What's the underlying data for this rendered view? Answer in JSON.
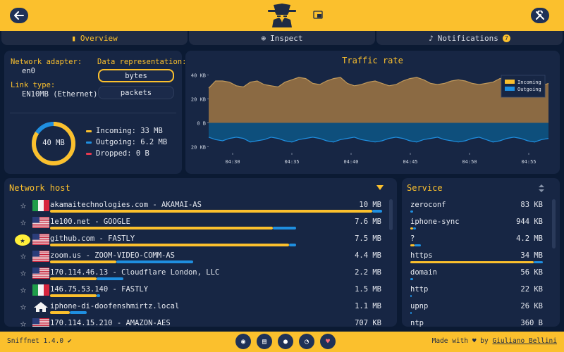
{
  "tabs": [
    {
      "label": "Overview",
      "icon": "chart-icon",
      "active": true
    },
    {
      "label": "Inspect",
      "icon": "magnifier-icon",
      "active": false
    },
    {
      "label": "Notifications",
      "icon": "bell-icon",
      "active": false,
      "badge": "7"
    }
  ],
  "adapter": {
    "network_adapter_label": "Network adapter:",
    "network_adapter_value": "en0",
    "link_type_label": "Link type:",
    "link_type_value": "EN10MB (Ethernet)",
    "data_rep_label": "Data representation:",
    "bytes_label": "bytes",
    "packets_label": "packets",
    "selected": "bytes",
    "total": "40 MB",
    "incoming": "Incoming: 33 MB",
    "outgoing": "Outgoing: 6.2 MB",
    "dropped": "Dropped: 0 B",
    "incoming_share": 0.84
  },
  "colors": {
    "accent": "#fbc02d",
    "incoming": "#fbc02d",
    "outgoing": "#1f8fe0",
    "dropped": "#e53950",
    "header": "#fbc02d"
  },
  "chart_data": {
    "type": "area",
    "title": "Traffic rate",
    "y_ticks": [
      "40 KB",
      "20 KB",
      "0 B",
      "20 KB"
    ],
    "y_tick_values": [
      40,
      20,
      0,
      -20
    ],
    "x_ticks": [
      "04:30",
      "04:35",
      "04:40",
      "04:45",
      "04:50",
      "04:55"
    ],
    "ylim": [
      -25,
      45
    ],
    "legend_position": "top-right",
    "series": [
      {
        "name": "Incoming",
        "values": [
          29,
          35,
          35,
          34,
          31,
          30,
          34,
          35,
          32,
          31,
          30,
          34,
          36,
          38,
          37,
          33,
          32,
          35,
          37,
          38,
          33,
          31,
          32,
          34,
          35,
          33,
          31,
          32,
          35,
          37,
          38,
          36,
          33,
          32,
          33,
          35,
          36,
          35,
          33,
          32,
          33,
          34,
          37,
          38,
          36,
          34,
          33,
          32,
          31,
          33
        ]
      },
      {
        "name": "Outgoing",
        "values": [
          -12,
          -14,
          -15,
          -13,
          -12,
          -13,
          -16,
          -15,
          -14,
          -12,
          -13,
          -15,
          -16,
          -14,
          -13,
          -12,
          -13,
          -15,
          -16,
          -14,
          -13,
          -12,
          -14,
          -15,
          -16,
          -15,
          -13,
          -12,
          -13,
          -15,
          -16,
          -14,
          -13,
          -12,
          -14,
          -15,
          -16,
          -15,
          -13,
          -12,
          -14,
          -16,
          -15,
          -13,
          -12,
          -13,
          -15,
          -16,
          -14,
          -13
        ]
      }
    ]
  },
  "hosts": {
    "title": "Network host",
    "rows": [
      {
        "flag": "it",
        "name": "akamaitechnologies.com - AKAMAI-AS",
        "value": "10 MB",
        "in": 0.97,
        "out": 0.03,
        "fav": false
      },
      {
        "flag": "us",
        "name": "1e100.net - GOOGLE",
        "value": "7.6 MB",
        "in": 0.67,
        "out": 0.07,
        "fav": false
      },
      {
        "flag": "us",
        "name": "github.com - FASTLY",
        "value": "7.5 MB",
        "in": 0.72,
        "out": 0.02,
        "fav": true
      },
      {
        "flag": "us",
        "name": "zoom.us - ZOOM-VIDEO-COMM-AS",
        "value": "4.4 MB",
        "in": 0.2,
        "out": 0.23,
        "fav": false
      },
      {
        "flag": "us",
        "name": "170.114.46.13 - Cloudflare London, LLC",
        "value": "2.2 MB",
        "in": 0.14,
        "out": 0.08,
        "fav": false
      },
      {
        "flag": "it",
        "name": "146.75.53.140 - FASTLY",
        "value": "1.5 MB",
        "in": 0.14,
        "out": 0.01,
        "fav": false
      },
      {
        "flag": "home",
        "name": "iphone-di-doofenshmirtz.local",
        "value": "1.1 MB",
        "in": 0.06,
        "out": 0.05,
        "fav": false
      },
      {
        "flag": "us",
        "name": "170.114.15.210 - AMAZON-AES",
        "value": "707 KB",
        "in": 0.05,
        "out": 0.04,
        "fav": false
      }
    ]
  },
  "services": {
    "title": "Service",
    "rows": [
      {
        "name": "zeroconf",
        "value": "83 KB",
        "in": 0.0,
        "out": 0.02
      },
      {
        "name": "iphone-sync",
        "value": "944 KB",
        "in": 0.02,
        "out": 0.02
      },
      {
        "name": "?",
        "value": "4.2 MB",
        "in": 0.03,
        "out": 0.05
      },
      {
        "name": "https",
        "value": "34 MB",
        "in": 0.93,
        "out": 0.07
      },
      {
        "name": "domain",
        "value": "56 KB",
        "in": 0.0,
        "out": 0.02
      },
      {
        "name": "http",
        "value": "22 KB",
        "in": 0.0,
        "out": 0.01
      },
      {
        "name": "upnp",
        "value": "26 KB",
        "in": 0.0,
        "out": 0.01
      },
      {
        "name": "ntp",
        "value": "360 B",
        "in": 0.0,
        "out": 0.005
      }
    ]
  },
  "footer": {
    "version": "Sniffnet 1.4.0",
    "made_with": "Made with",
    "by": "by",
    "author": "Giuliano Bellini",
    "icons": [
      "website-icon",
      "wiki-icon",
      "github-icon",
      "rss-icon",
      "sponsor-icon"
    ]
  }
}
